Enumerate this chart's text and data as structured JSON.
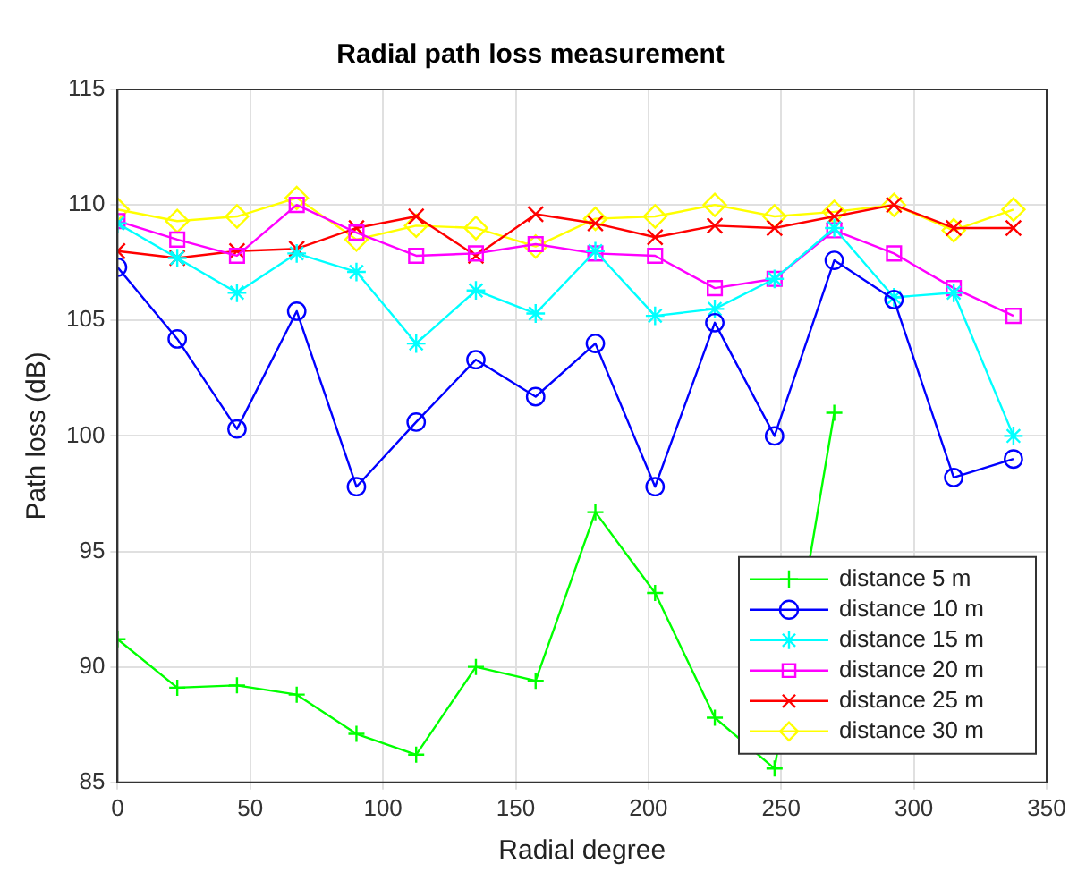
{
  "chart_data": {
    "type": "line",
    "title": "Radial path loss measurement",
    "xlabel": "Radial degree",
    "ylabel": "Path loss (dB)",
    "x": [
      0,
      22.5,
      45,
      67.5,
      90,
      112.5,
      135,
      157.5,
      180,
      202.5,
      225,
      247.5,
      270,
      292.5,
      315,
      337.5
    ],
    "xlim": [
      0,
      350
    ],
    "xticks": [
      0,
      50,
      100,
      150,
      200,
      250,
      300,
      350
    ],
    "ylim": [
      85,
      115
    ],
    "yticks": [
      85,
      90,
      95,
      100,
      105,
      110,
      115
    ],
    "grid": true,
    "legend": "bottom right",
    "line_style": "solid",
    "series": [
      {
        "name": "distance 5 m",
        "color": "#00ff00",
        "marker": "plus",
        "values": [
          91.2,
          89.1,
          89.2,
          88.8,
          87.1,
          86.2,
          90.0,
          89.4,
          96.7,
          93.2,
          87.8,
          85.6,
          101.0,
          null,
          null,
          null
        ]
      },
      {
        "name": "distance 10 m",
        "color": "#0000ff",
        "marker": "circle",
        "values": [
          107.3,
          104.2,
          100.3,
          105.4,
          97.8,
          100.6,
          103.3,
          101.7,
          104.0,
          97.8,
          104.9,
          100.0,
          107.6,
          105.9,
          98.2,
          99.0
        ]
      },
      {
        "name": "distance 15 m",
        "color": "#00ffff",
        "marker": "cross",
        "values": [
          109.2,
          107.7,
          106.2,
          107.9,
          107.1,
          104.0,
          106.3,
          105.3,
          108.0,
          105.2,
          105.5,
          106.8,
          109.0,
          106.0,
          106.2,
          100.0
        ]
      },
      {
        "name": "distance 20 m",
        "color": "#ff00ff",
        "marker": "square",
        "values": [
          109.3,
          108.5,
          107.8,
          110.0,
          108.8,
          107.8,
          107.9,
          108.3,
          107.9,
          107.8,
          106.4,
          106.8,
          108.9,
          107.9,
          106.4,
          105.2
        ]
      },
      {
        "name": "distance 25 m",
        "color": "#ff0000",
        "marker": "cross",
        "values": [
          108.0,
          107.7,
          108.0,
          108.1,
          109.0,
          109.5,
          107.8,
          109.6,
          109.2,
          108.6,
          109.1,
          109.0,
          109.5,
          110.0,
          109.0,
          109.0
        ]
      },
      {
        "name": "distance 30 m",
        "color": "#ffff00",
        "marker": "diamond",
        "values": [
          109.8,
          109.3,
          109.5,
          110.3,
          108.5,
          109.1,
          109.0,
          108.2,
          109.4,
          109.5,
          110.0,
          109.5,
          109.7,
          110.0,
          108.9,
          109.8
        ]
      }
    ]
  }
}
